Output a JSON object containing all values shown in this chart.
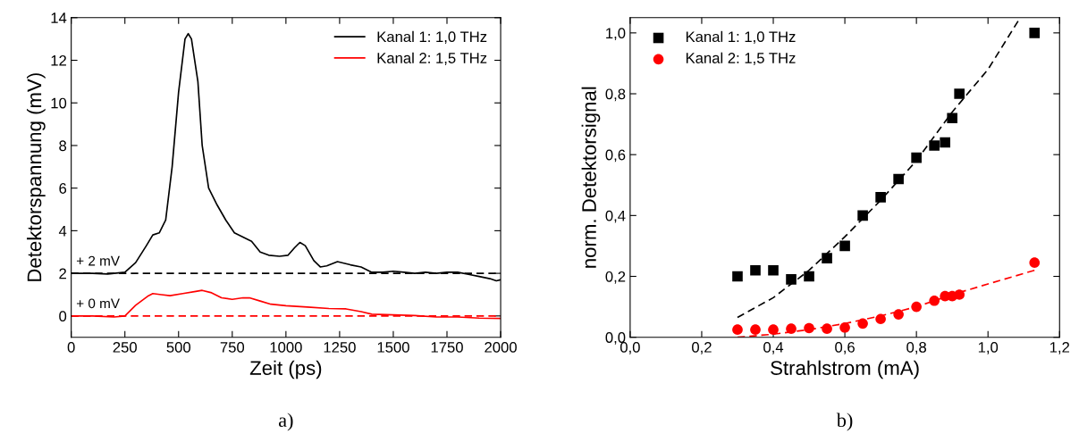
{
  "chart_data": [
    {
      "type": "line",
      "xlabel": "Zeit (ps)",
      "ylabel": "Detektorspannung (mV)",
      "annotations": [
        "a)"
      ],
      "xlim": [
        0,
        2000
      ],
      "xticks": [
        0,
        250,
        500,
        750,
        1000,
        1250,
        1500,
        1750,
        2000
      ],
      "ylim": [
        -1,
        14
      ],
      "yticks": [
        0,
        2,
        4,
        6,
        8,
        10,
        12,
        14
      ],
      "grid": false,
      "legend": "top right",
      "ref_lines": [
        {
          "axis": "y",
          "value": 2,
          "label": "+ 2 mV",
          "color": "#000000",
          "line_style": "dashed"
        },
        {
          "axis": "y",
          "value": 0,
          "label": "+ 0 mV",
          "color": "#ff0000",
          "line_style": "dashed"
        }
      ],
      "series": [
        {
          "name": "Kanal 1: 1,0 THz",
          "color": "#000000",
          "x": [
            0,
            100,
            170,
            250,
            300,
            350,
            380,
            410,
            440,
            470,
            500,
            530,
            545,
            560,
            590,
            610,
            640,
            680,
            720,
            760,
            800,
            840,
            880,
            920,
            970,
            1010,
            1040,
            1065,
            1090,
            1130,
            1160,
            1190,
            1240,
            1300,
            1350,
            1400,
            1450,
            1500,
            1550,
            1600,
            1650,
            1700,
            1750,
            1800,
            1850,
            1900,
            1950,
            1980,
            2000
          ],
          "values": [
            2.0,
            2.0,
            1.97,
            2.05,
            2.5,
            3.3,
            3.8,
            3.9,
            4.5,
            7.0,
            10.5,
            13.0,
            13.25,
            13.0,
            11.0,
            8.0,
            6.0,
            5.2,
            4.5,
            3.9,
            3.7,
            3.5,
            3.0,
            2.85,
            2.8,
            2.85,
            3.2,
            3.45,
            3.3,
            2.6,
            2.3,
            2.35,
            2.55,
            2.4,
            2.3,
            2.05,
            2.05,
            2.1,
            2.05,
            2.0,
            2.05,
            2.0,
            2.05,
            2.05,
            1.95,
            1.85,
            1.75,
            1.65,
            1.7
          ]
        },
        {
          "name": "Kanal 2: 1,5 THz",
          "color": "#ff0000",
          "x": [
            0,
            100,
            200,
            250,
            300,
            360,
            380,
            420,
            460,
            520,
            580,
            610,
            650,
            700,
            750,
            800,
            830,
            880,
            930,
            1000,
            1100,
            1200,
            1280,
            1350,
            1400,
            1500,
            1600,
            1700,
            1800,
            1900,
            2000
          ],
          "values": [
            0.0,
            0.0,
            -0.05,
            0.0,
            0.5,
            0.95,
            1.05,
            1.0,
            0.95,
            1.05,
            1.15,
            1.2,
            1.1,
            0.85,
            0.78,
            0.85,
            0.85,
            0.7,
            0.55,
            0.48,
            0.42,
            0.35,
            0.33,
            0.2,
            0.08,
            0.05,
            0.02,
            -0.05,
            -0.05,
            -0.1,
            -0.12
          ]
        }
      ]
    },
    {
      "type": "scatter",
      "xlabel": "Strahlstrom (mA)",
      "ylabel": "norm. Detektorsignal",
      "annotations": [
        "b)"
      ],
      "xlim": [
        0,
        1.2
      ],
      "xticks": [
        {
          "value": 0,
          "label": "0,0"
        },
        {
          "value": 0.2,
          "label": "0,2"
        },
        {
          "value": 0.4,
          "label": "0,4"
        },
        {
          "value": 0.6,
          "label": "0,6"
        },
        {
          "value": 0.8,
          "label": "0,8"
        },
        {
          "value": 1.0,
          "label": "1,0"
        },
        {
          "value": 1.2,
          "label": "1,2"
        }
      ],
      "ylim": [
        0,
        1.05
      ],
      "yticks": [
        {
          "value": 0,
          "label": "0,0"
        },
        {
          "value": 0.2,
          "label": "0,2"
        },
        {
          "value": 0.4,
          "label": "0,4"
        },
        {
          "value": 0.6,
          "label": "0,6"
        },
        {
          "value": 0.8,
          "label": "0,8"
        },
        {
          "value": 1.0,
          "label": "1,0"
        }
      ],
      "grid": false,
      "legend": "top left",
      "series": [
        {
          "name": "Kanal 1: 1,0 THz",
          "color": "#000000",
          "marker": "square",
          "x": [
            0.3,
            0.35,
            0.4,
            0.45,
            0.5,
            0.55,
            0.6,
            0.65,
            0.7,
            0.75,
            0.8,
            0.85,
            0.88,
            0.9,
            0.92,
            1.13
          ],
          "values": [
            0.2,
            0.22,
            0.22,
            0.19,
            0.2,
            0.26,
            0.3,
            0.4,
            0.46,
            0.52,
            0.59,
            0.63,
            0.64,
            0.72,
            0.8,
            1.0
          ]
        },
        {
          "name": "Kanal 2: 1,5 THz",
          "color": "#ff0000",
          "marker": "circle",
          "x": [
            0.3,
            0.35,
            0.4,
            0.45,
            0.5,
            0.55,
            0.6,
            0.65,
            0.7,
            0.75,
            0.8,
            0.85,
            0.88,
            0.9,
            0.92,
            1.13
          ],
          "values": [
            0.025,
            0.025,
            0.025,
            0.028,
            0.03,
            0.028,
            0.032,
            0.045,
            0.06,
            0.075,
            0.1,
            0.12,
            0.135,
            0.135,
            0.14,
            0.245
          ]
        },
        {
          "type": "line",
          "color": "#000000",
          "line_style": "dashed",
          "x": [
            0.3,
            0.4,
            0.5,
            0.6,
            0.7,
            0.8,
            0.9,
            1.0,
            1.09
          ],
          "values": [
            0.065,
            0.13,
            0.22,
            0.33,
            0.45,
            0.58,
            0.74,
            0.88,
            1.05
          ]
        },
        {
          "type": "line",
          "color": "#ff0000",
          "line_style": "dashed",
          "x": [
            0.3,
            0.4,
            0.5,
            0.6,
            0.7,
            0.8,
            0.9,
            1.0,
            1.13
          ],
          "values": [
            0.0,
            0.01,
            0.025,
            0.045,
            0.07,
            0.1,
            0.14,
            0.175,
            0.22
          ]
        }
      ]
    }
  ]
}
